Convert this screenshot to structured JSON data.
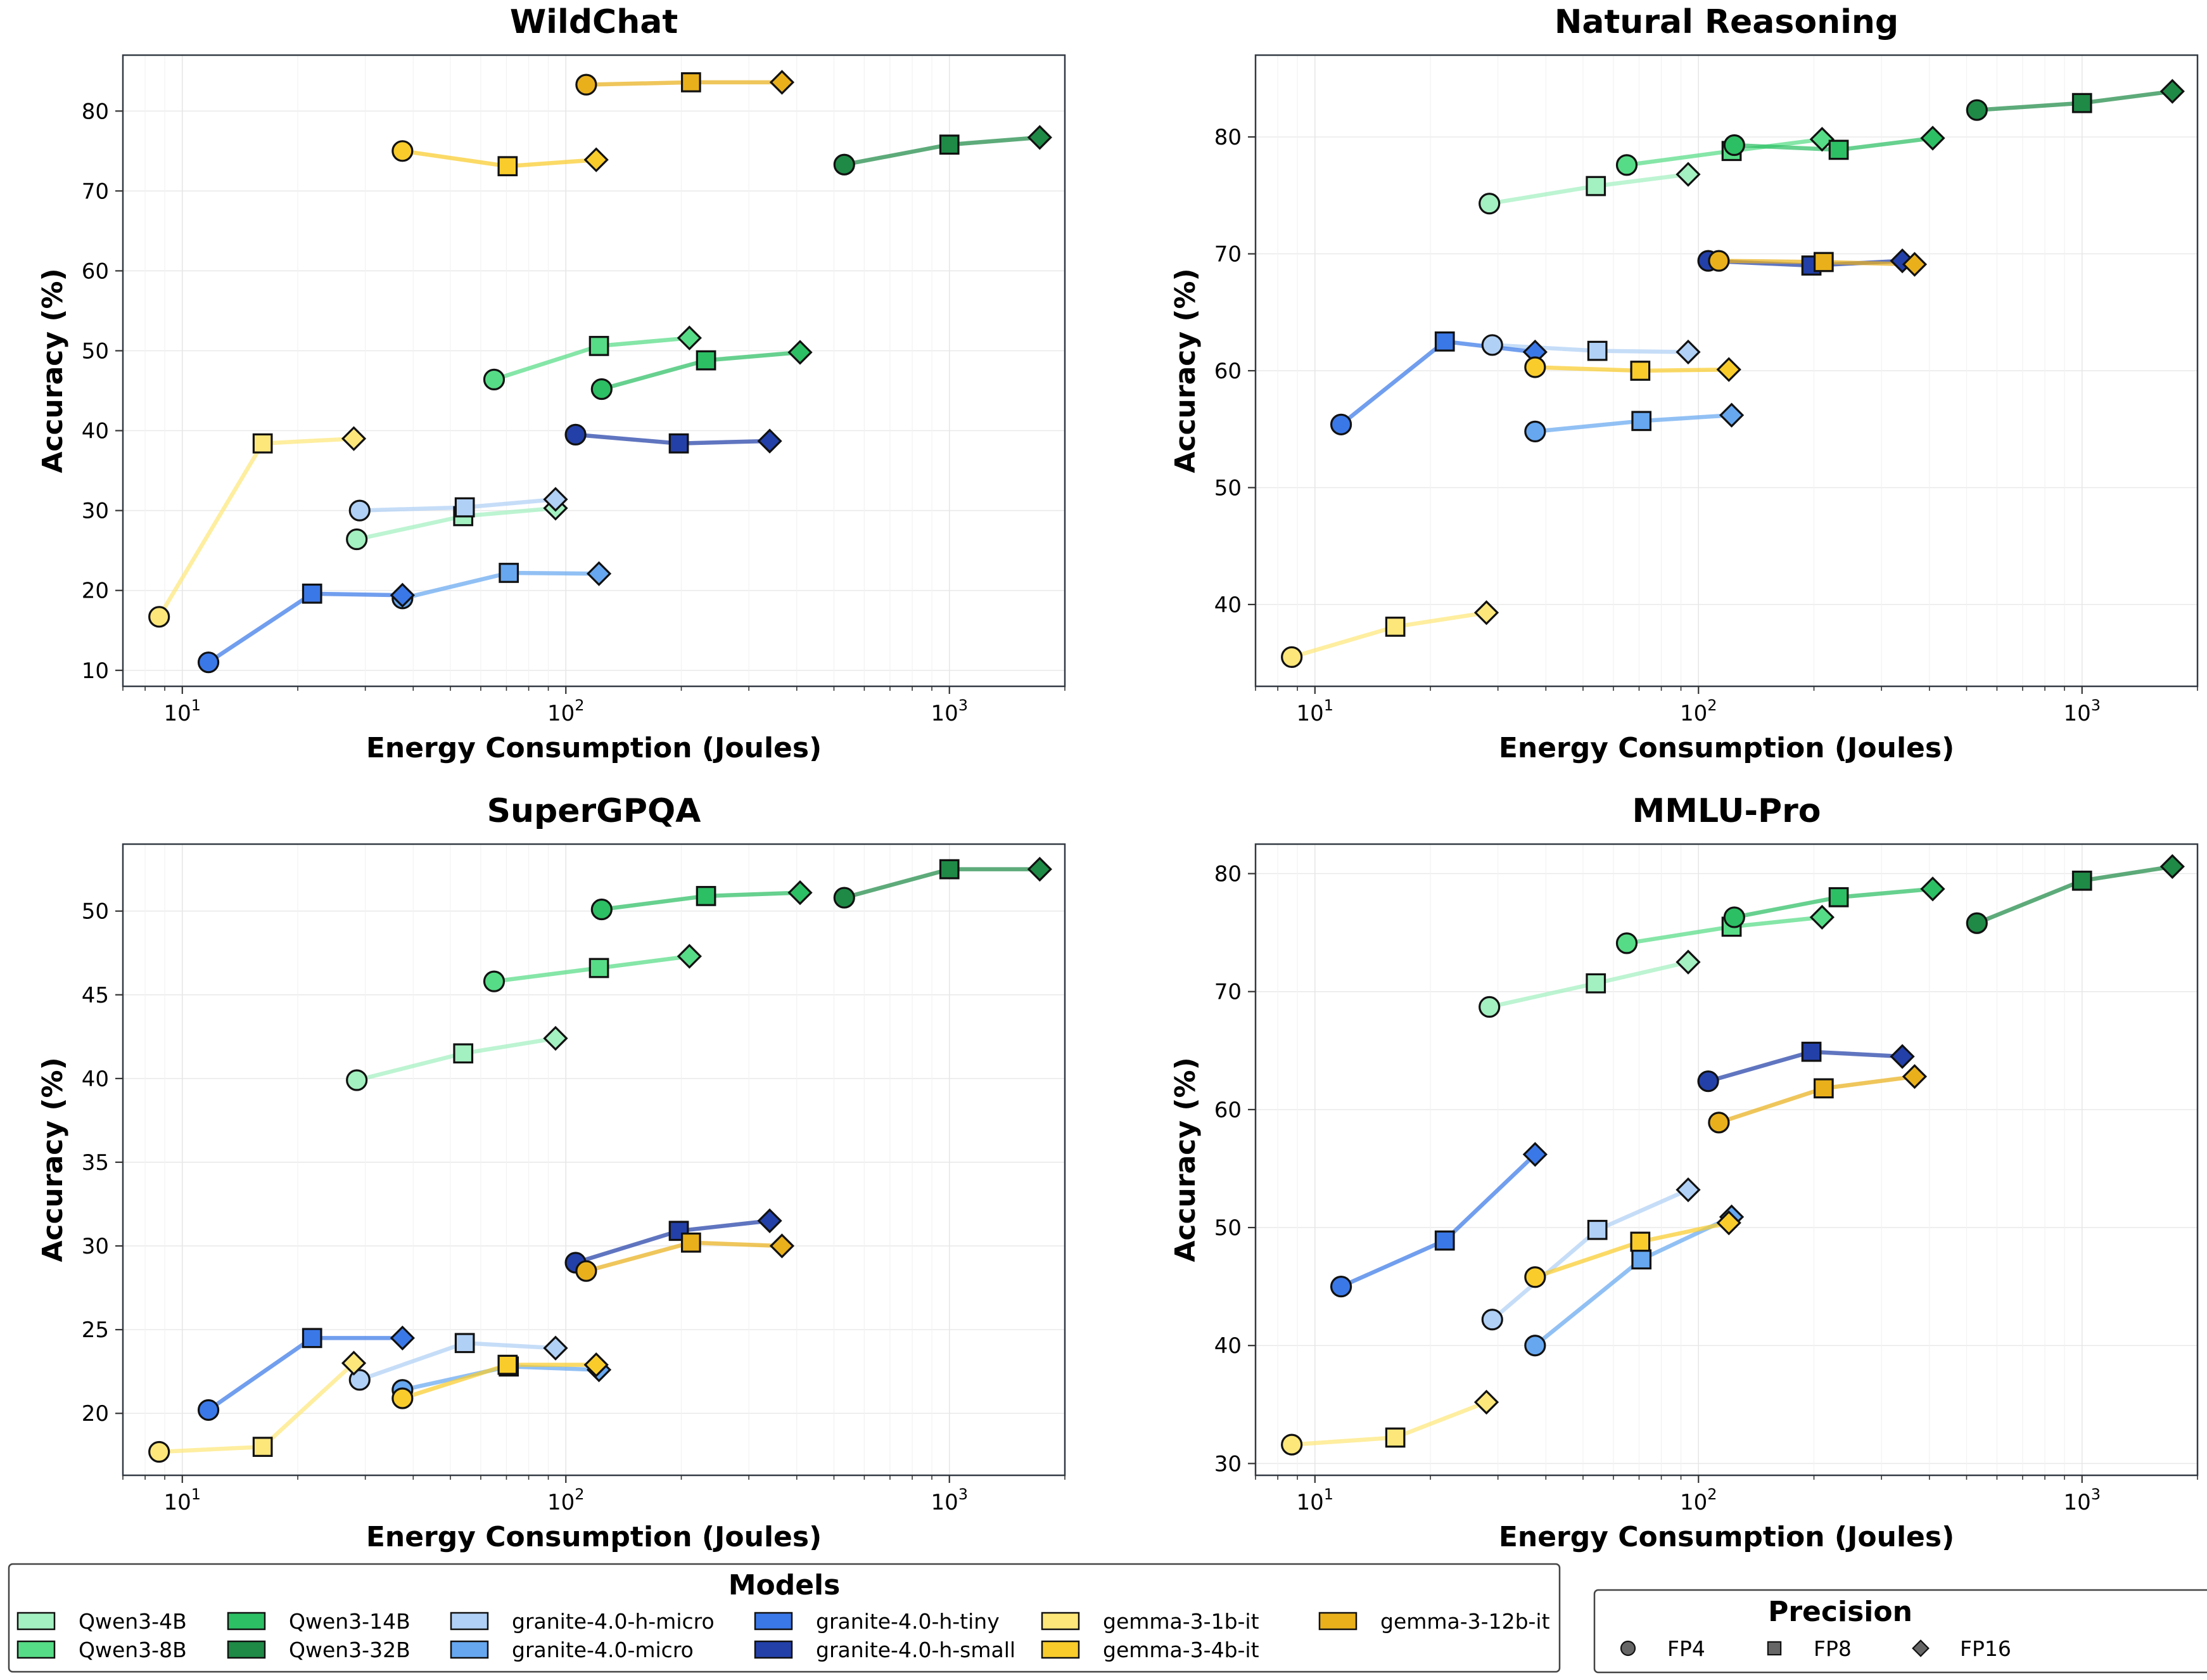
{
  "chart_data": [
    {
      "type": "line",
      "title": "WildChat",
      "xlabel": "Energy Consumption (Joules)",
      "ylabel": "Accuracy (%)",
      "xscale": "log",
      "xlim": [
        7,
        2000
      ],
      "ylim": [
        8,
        87
      ],
      "yticks": [
        10,
        20,
        30,
        40,
        50,
        60,
        70,
        80
      ],
      "grid": true,
      "series": [
        {
          "model": "Qwen3-4B",
          "points": [
            {
              "x": 28.5,
              "y": 26.4
            },
            {
              "x": 54,
              "y": 29.3
            },
            {
              "x": 94,
              "y": 30.3
            }
          ]
        },
        {
          "model": "Qwen3-8B",
          "points": [
            {
              "x": 65,
              "y": 46.4
            },
            {
              "x": 122,
              "y": 50.6
            },
            {
              "x": 210,
              "y": 51.6
            }
          ]
        },
        {
          "model": "Qwen3-14B",
          "points": [
            {
              "x": 124,
              "y": 45.2
            },
            {
              "x": 232,
              "y": 48.8
            },
            {
              "x": 408,
              "y": 49.8
            }
          ]
        },
        {
          "model": "Qwen3-32B",
          "points": [
            {
              "x": 532,
              "y": 73.3
            },
            {
              "x": 1000,
              "y": 75.8
            },
            {
              "x": 1720,
              "y": 76.7
            }
          ]
        },
        {
          "model": "granite-4.0-h-micro",
          "points": [
            {
              "x": 29,
              "y": 30.0
            },
            {
              "x": 54.5,
              "y": 30.4
            },
            {
              "x": 94,
              "y": 31.4
            }
          ]
        },
        {
          "model": "granite-4.0-micro",
          "points": [
            {
              "x": 37.5,
              "y": 19.0
            },
            {
              "x": 71,
              "y": 22.2
            },
            {
              "x": 122,
              "y": 22.1
            }
          ]
        },
        {
          "model": "granite-4.0-h-tiny",
          "points": [
            {
              "x": 11.7,
              "y": 11.0
            },
            {
              "x": 21.8,
              "y": 19.6
            },
            {
              "x": 37.5,
              "y": 19.4
            }
          ]
        },
        {
          "model": "granite-4.0-h-small",
          "points": [
            {
              "x": 106,
              "y": 39.5
            },
            {
              "x": 197,
              "y": 38.4
            },
            {
              "x": 340,
              "y": 38.7
            }
          ]
        },
        {
          "model": "gemma-3-1b-it",
          "points": [
            {
              "x": 8.7,
              "y": 16.7
            },
            {
              "x": 16.2,
              "y": 38.4
            },
            {
              "x": 28,
              "y": 39.0
            }
          ]
        },
        {
          "model": "gemma-3-4b-it",
          "points": [
            {
              "x": 37.5,
              "y": 75.0
            },
            {
              "x": 70.5,
              "y": 73.1
            },
            {
              "x": 120,
              "y": 73.9
            }
          ]
        },
        {
          "model": "gemma-3-12b-it",
          "points": [
            {
              "x": 113,
              "y": 83.3
            },
            {
              "x": 212,
              "y": 83.6
            },
            {
              "x": 366,
              "y": 83.6
            }
          ]
        }
      ]
    },
    {
      "type": "line",
      "title": "Natural Reasoning",
      "xlabel": "Energy Consumption (Joules)",
      "ylabel": "Accuracy (%)",
      "xscale": "log",
      "xlim": [
        7,
        2000
      ],
      "ylim": [
        33,
        87
      ],
      "yticks": [
        40,
        50,
        60,
        70,
        80
      ],
      "grid": true,
      "series": [
        {
          "model": "Qwen3-4B",
          "points": [
            {
              "x": 28.5,
              "y": 74.3
            },
            {
              "x": 54,
              "y": 75.8
            },
            {
              "x": 94,
              "y": 76.8
            }
          ]
        },
        {
          "model": "Qwen3-8B",
          "points": [
            {
              "x": 65,
              "y": 77.6
            },
            {
              "x": 122,
              "y": 78.8
            },
            {
              "x": 210,
              "y": 79.8
            }
          ]
        },
        {
          "model": "Qwen3-14B",
          "points": [
            {
              "x": 124,
              "y": 79.3
            },
            {
              "x": 232,
              "y": 78.9
            },
            {
              "x": 408,
              "y": 79.9
            }
          ]
        },
        {
          "model": "Qwen3-32B",
          "points": [
            {
              "x": 532,
              "y": 82.3
            },
            {
              "x": 1000,
              "y": 82.9
            },
            {
              "x": 1720,
              "y": 83.9
            }
          ]
        },
        {
          "model": "granite-4.0-h-micro",
          "points": [
            {
              "x": 29,
              "y": 62.2
            },
            {
              "x": 54.5,
              "y": 61.7
            },
            {
              "x": 94,
              "y": 61.6
            }
          ]
        },
        {
          "model": "granite-4.0-micro",
          "points": [
            {
              "x": 37.5,
              "y": 54.8
            },
            {
              "x": 71,
              "y": 55.7
            },
            {
              "x": 122,
              "y": 56.2
            }
          ]
        },
        {
          "model": "granite-4.0-h-tiny",
          "points": [
            {
              "x": 11.7,
              "y": 55.4
            },
            {
              "x": 21.8,
              "y": 62.5
            },
            {
              "x": 37.5,
              "y": 61.6
            }
          ]
        },
        {
          "model": "granite-4.0-h-small",
          "points": [
            {
              "x": 106,
              "y": 69.4
            },
            {
              "x": 197,
              "y": 69.0
            },
            {
              "x": 340,
              "y": 69.4
            }
          ]
        },
        {
          "model": "gemma-3-1b-it",
          "points": [
            {
              "x": 8.7,
              "y": 35.5
            },
            {
              "x": 16.2,
              "y": 38.1
            },
            {
              "x": 28,
              "y": 39.3
            }
          ]
        },
        {
          "model": "gemma-3-4b-it",
          "points": [
            {
              "x": 37.5,
              "y": 60.3
            },
            {
              "x": 70.5,
              "y": 60.0
            },
            {
              "x": 120,
              "y": 60.1
            }
          ]
        },
        {
          "model": "gemma-3-12b-it",
          "points": [
            {
              "x": 113,
              "y": 69.4
            },
            {
              "x": 212,
              "y": 69.3
            },
            {
              "x": 366,
              "y": 69.1
            }
          ]
        }
      ]
    },
    {
      "type": "line",
      "title": "SuperGPQA",
      "xlabel": "Energy Consumption (Joules)",
      "ylabel": "Accuracy (%)",
      "xscale": "log",
      "xlim": [
        7,
        2000
      ],
      "ylim": [
        16.3,
        54
      ],
      "yticks": [
        20,
        25,
        30,
        35,
        40,
        45,
        50
      ],
      "grid": true,
      "series": [
        {
          "model": "Qwen3-4B",
          "points": [
            {
              "x": 28.5,
              "y": 39.9
            },
            {
              "x": 54,
              "y": 41.5
            },
            {
              "x": 94,
              "y": 42.4
            }
          ]
        },
        {
          "model": "Qwen3-8B",
          "points": [
            {
              "x": 65,
              "y": 45.8
            },
            {
              "x": 122,
              "y": 46.6
            },
            {
              "x": 210,
              "y": 47.3
            }
          ]
        },
        {
          "model": "Qwen3-14B",
          "points": [
            {
              "x": 124,
              "y": 50.1
            },
            {
              "x": 232,
              "y": 50.9
            },
            {
              "x": 408,
              "y": 51.1
            }
          ]
        },
        {
          "model": "Qwen3-32B",
          "points": [
            {
              "x": 532,
              "y": 50.8
            },
            {
              "x": 1000,
              "y": 52.5
            },
            {
              "x": 1720,
              "y": 52.5
            }
          ]
        },
        {
          "model": "granite-4.0-h-micro",
          "points": [
            {
              "x": 29,
              "y": 22.0
            },
            {
              "x": 54.5,
              "y": 24.2
            },
            {
              "x": 94,
              "y": 23.9
            }
          ]
        },
        {
          "model": "granite-4.0-micro",
          "points": [
            {
              "x": 37.5,
              "y": 21.4
            },
            {
              "x": 71,
              "y": 22.8
            },
            {
              "x": 122,
              "y": 22.6
            }
          ]
        },
        {
          "model": "granite-4.0-h-tiny",
          "points": [
            {
              "x": 11.7,
              "y": 20.2
            },
            {
              "x": 21.8,
              "y": 24.5
            },
            {
              "x": 37.5,
              "y": 24.5
            }
          ]
        },
        {
          "model": "granite-4.0-h-small",
          "points": [
            {
              "x": 106,
              "y": 29.0
            },
            {
              "x": 197,
              "y": 30.9
            },
            {
              "x": 340,
              "y": 31.5
            }
          ]
        },
        {
          "model": "gemma-3-1b-it",
          "points": [
            {
              "x": 8.7,
              "y": 17.7
            },
            {
              "x": 16.2,
              "y": 18.0
            },
            {
              "x": 28,
              "y": 23.0
            }
          ]
        },
        {
          "model": "gemma-3-4b-it",
          "points": [
            {
              "x": 37.5,
              "y": 20.9
            },
            {
              "x": 70.5,
              "y": 22.9
            },
            {
              "x": 120,
              "y": 22.9
            }
          ]
        },
        {
          "model": "gemma-3-12b-it",
          "points": [
            {
              "x": 113,
              "y": 28.5
            },
            {
              "x": 212,
              "y": 30.2
            },
            {
              "x": 366,
              "y": 30.0
            }
          ]
        }
      ]
    },
    {
      "type": "line",
      "title": "MMLU-Pro",
      "xlabel": "Energy Consumption (Joules)",
      "ylabel": "Accuracy (%)",
      "xscale": "log",
      "xlim": [
        7,
        2000
      ],
      "ylim": [
        29,
        82.5
      ],
      "yticks": [
        30,
        40,
        50,
        60,
        70,
        80
      ],
      "grid": true,
      "series": [
        {
          "model": "Qwen3-4B",
          "points": [
            {
              "x": 28.5,
              "y": 68.7
            },
            {
              "x": 54,
              "y": 70.7
            },
            {
              "x": 94,
              "y": 72.5
            }
          ]
        },
        {
          "model": "Qwen3-8B",
          "points": [
            {
              "x": 65,
              "y": 74.1
            },
            {
              "x": 122,
              "y": 75.5
            },
            {
              "x": 210,
              "y": 76.3
            }
          ]
        },
        {
          "model": "Qwen3-14B",
          "points": [
            {
              "x": 124,
              "y": 76.3
            },
            {
              "x": 232,
              "y": 78.0
            },
            {
              "x": 408,
              "y": 78.7
            }
          ]
        },
        {
          "model": "Qwen3-32B",
          "points": [
            {
              "x": 532,
              "y": 75.8
            },
            {
              "x": 1000,
              "y": 79.4
            },
            {
              "x": 1720,
              "y": 80.6
            }
          ]
        },
        {
          "model": "granite-4.0-h-micro",
          "points": [
            {
              "x": 29,
              "y": 42.2
            },
            {
              "x": 54.5,
              "y": 49.8
            },
            {
              "x": 94,
              "y": 53.2
            }
          ]
        },
        {
          "model": "granite-4.0-micro",
          "points": [
            {
              "x": 37.5,
              "y": 40.0
            },
            {
              "x": 71,
              "y": 47.3
            },
            {
              "x": 122,
              "y": 50.9
            }
          ]
        },
        {
          "model": "granite-4.0-h-tiny",
          "points": [
            {
              "x": 11.7,
              "y": 45.0
            },
            {
              "x": 21.8,
              "y": 48.9
            },
            {
              "x": 37.5,
              "y": 56.2
            }
          ]
        },
        {
          "model": "granite-4.0-h-small",
          "points": [
            {
              "x": 106,
              "y": 62.4
            },
            {
              "x": 197,
              "y": 64.9
            },
            {
              "x": 340,
              "y": 64.5
            }
          ]
        },
        {
          "model": "gemma-3-1b-it",
          "points": [
            {
              "x": 8.7,
              "y": 31.6
            },
            {
              "x": 16.2,
              "y": 32.2
            },
            {
              "x": 28,
              "y": 35.2
            }
          ]
        },
        {
          "model": "gemma-3-4b-it",
          "points": [
            {
              "x": 37.5,
              "y": 45.8
            },
            {
              "x": 70.5,
              "y": 48.8
            },
            {
              "x": 120,
              "y": 50.4
            }
          ]
        },
        {
          "model": "gemma-3-12b-it",
          "points": [
            {
              "x": 113,
              "y": 58.9
            },
            {
              "x": 212,
              "y": 61.8
            },
            {
              "x": 366,
              "y": 62.8
            }
          ]
        }
      ]
    }
  ],
  "models": [
    {
      "name": "Qwen3-4B",
      "color": "#a3f0c0"
    },
    {
      "name": "Qwen3-8B",
      "color": "#56dc86"
    },
    {
      "name": "Qwen3-14B",
      "color": "#2cbf64"
    },
    {
      "name": "Qwen3-32B",
      "color": "#1e8a46"
    },
    {
      "name": "granite-4.0-h-micro",
      "color": "#b0d0f5"
    },
    {
      "name": "granite-4.0-micro",
      "color": "#66a7f0"
    },
    {
      "name": "granite-4.0-h-tiny",
      "color": "#3a78e8"
    },
    {
      "name": "granite-4.0-h-small",
      "color": "#2340a8"
    },
    {
      "name": "gemma-3-1b-it",
      "color": "#fde77a"
    },
    {
      "name": "gemma-3-4b-it",
      "color": "#f9cc2b"
    },
    {
      "name": "gemma-3-12b-it",
      "color": "#e9b01c"
    }
  ],
  "precisions": [
    {
      "name": "FP4",
      "marker": "circle"
    },
    {
      "name": "FP8",
      "marker": "square"
    },
    {
      "name": "FP16",
      "marker": "diamond"
    }
  ],
  "legend": {
    "models_title": "Models",
    "precision_title": "Precision",
    "placement": "bottom"
  },
  "tick_labels": {
    "x": [
      {
        "mantissa": "10",
        "exp": "1",
        "value": 10
      },
      {
        "mantissa": "10",
        "exp": "2",
        "value": 100
      },
      {
        "mantissa": "10",
        "exp": "3",
        "value": 1000
      }
    ]
  }
}
